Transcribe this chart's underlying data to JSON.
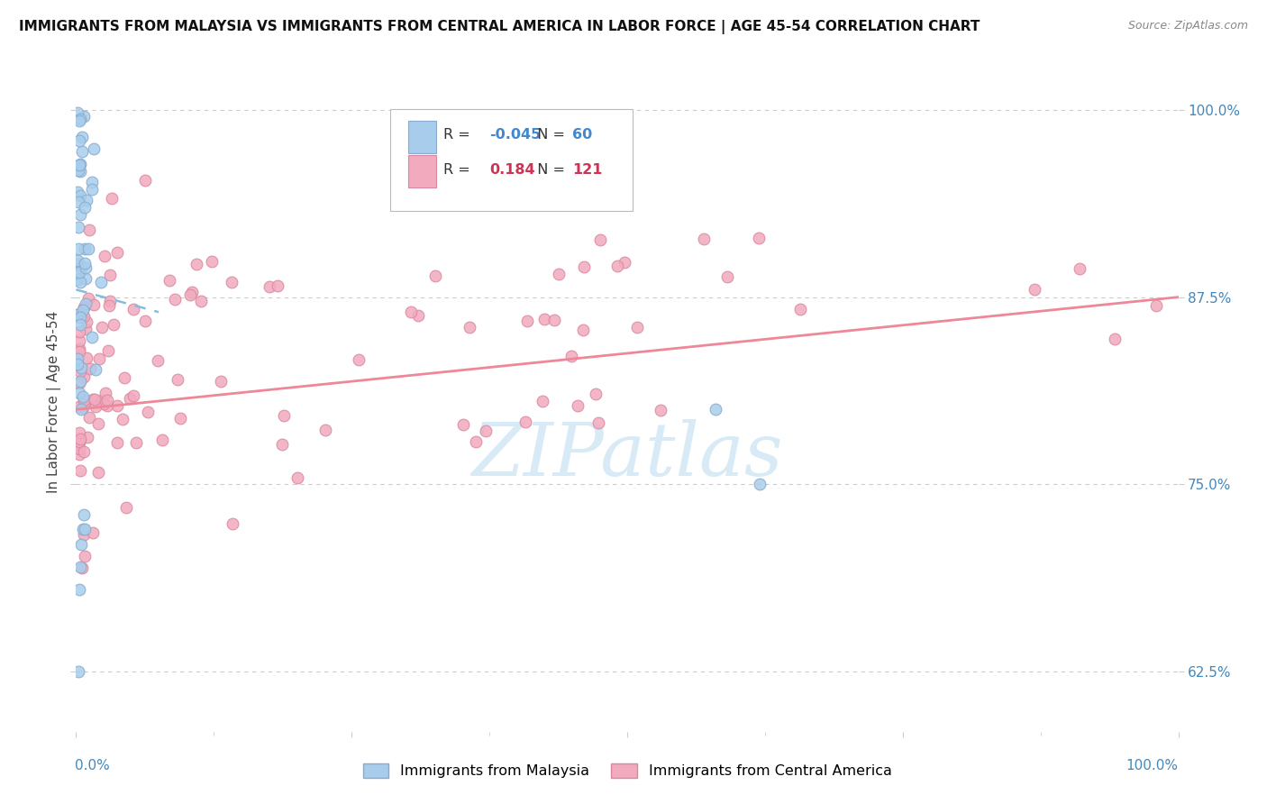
{
  "title": "IMMIGRANTS FROM MALAYSIA VS IMMIGRANTS FROM CENTRAL AMERICA IN LABOR FORCE | AGE 45-54 CORRELATION CHART",
  "source": "Source: ZipAtlas.com",
  "ylabel": "In Labor Force | Age 45-54",
  "ytick_labels": [
    "62.5%",
    "75.0%",
    "87.5%",
    "100.0%"
  ],
  "ytick_values": [
    0.625,
    0.75,
    0.875,
    1.0
  ],
  "legend_blue_R": "-0.045",
  "legend_blue_N": "60",
  "legend_pink_R": "0.184",
  "legend_pink_N": "121",
  "legend_label_blue": "Immigrants from Malaysia",
  "legend_label_pink": "Immigrants from Central America",
  "blue_color": "#A8CDEC",
  "pink_color": "#F2AABE",
  "blue_edge_color": "#88AACC",
  "pink_edge_color": "#D888A0",
  "blue_line_color": "#88BBDD",
  "pink_line_color": "#EE8899",
  "watermark": "ZIPatlas",
  "watermark_color": "#D8EAF5",
  "xlim": [
    0.0,
    1.0
  ],
  "ylim": [
    0.585,
    1.025
  ],
  "title_fontsize": 11,
  "source_fontsize": 9,
  "ylabel_fontsize": 11,
  "tick_label_color": "#4488BB",
  "tick_label_fontsize": 11
}
